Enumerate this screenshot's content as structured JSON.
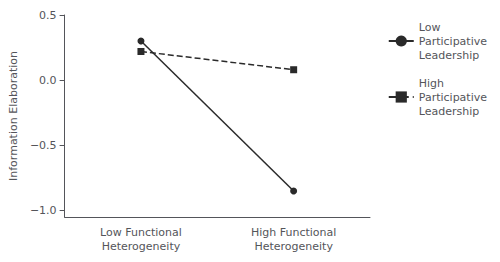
{
  "chart_data": {
    "type": "line",
    "categories": [
      "Low Functional\nHeterogeneity",
      "High Functional\nHeterogeneity"
    ],
    "series": [
      {
        "name": "Low\nParticipative\nLeadership",
        "color": "#2a2a2a",
        "line_style": "solid",
        "marker": "circle",
        "values": [
          0.3,
          -0.85
        ]
      },
      {
        "name": "High\nParticipative\nLeadership",
        "color": "#2a2a2a",
        "line_style": "dashed",
        "marker": "square",
        "values": [
          0.22,
          0.08
        ]
      }
    ],
    "ylabel": "Information Elaboration",
    "ylim": [
      -1.05,
      0.5
    ],
    "yticks": [
      {
        "value": -1.0,
        "label": "−1.0"
      },
      {
        "value": -0.5,
        "label": "−0.5"
      },
      {
        "value": 0.0,
        "label": "0.0"
      },
      0.5
    ],
    "grid": false,
    "legend": "right"
  }
}
